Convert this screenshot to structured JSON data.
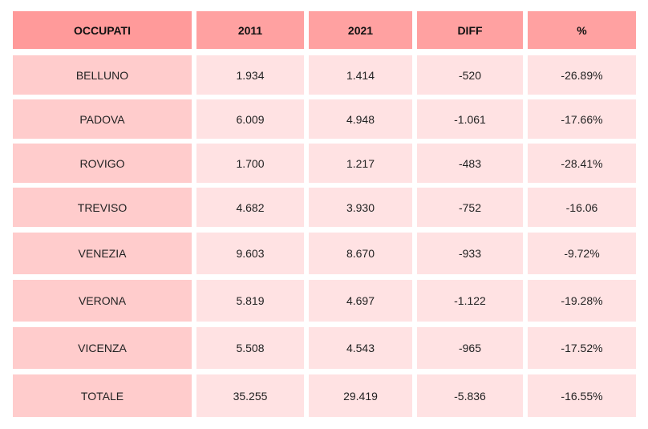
{
  "table": {
    "headers": [
      "OCCUPATI",
      "2011",
      "2021",
      "DIFF",
      "%"
    ],
    "rows": [
      [
        "BELLUNO",
        "1.934",
        "1.414",
        "-520",
        "-26.89%"
      ],
      [
        "PADOVA",
        "6.009",
        "4.948",
        "-1.061",
        "-17.66%"
      ],
      [
        "ROVIGO",
        "1.700",
        "1.217",
        "-483",
        "-28.41%"
      ],
      [
        "TREVISO",
        "4.682",
        "3.930",
        "-752",
        "-16.06"
      ],
      [
        "VENEZIA",
        "9.603",
        "8.670",
        "-933",
        "-9.72%"
      ],
      [
        "VERONA",
        "5.819",
        "4.697",
        "-1.122",
        "-19.28%"
      ],
      [
        "VICENZA",
        "5.508",
        "4.543",
        "-965",
        "-17.52%"
      ],
      [
        "TOTALE",
        "35.255",
        "29.419",
        "-5.836",
        "-16.55%"
      ]
    ]
  },
  "colors": {
    "header_first": "#ff9a9a",
    "header": "#ffa1a1",
    "first_col": "#ffcccc",
    "body": "#ffe2e3"
  }
}
